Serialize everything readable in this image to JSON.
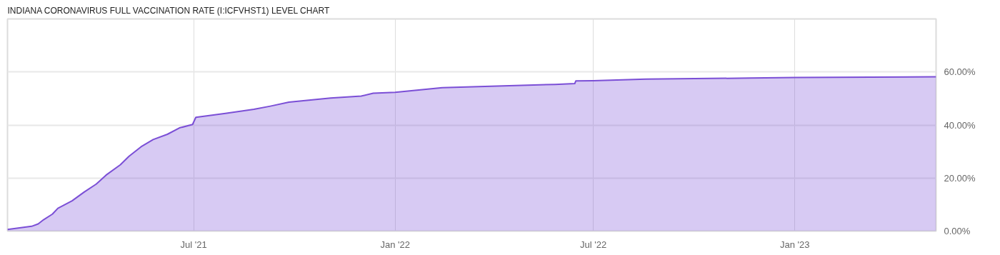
{
  "chart_data": {
    "type": "area",
    "title": "INDIANA CORONAVIRUS FULL VACCINATION RATE (I:ICFVHST1) LEVEL CHART",
    "x": [
      "2021-01-12",
      "2021-02-03",
      "2021-02-09",
      "2021-02-14",
      "2021-02-22",
      "2021-02-27",
      "2021-03-12",
      "2021-03-23",
      "2021-04-03",
      "2021-04-12",
      "2021-04-25",
      "2021-05-03",
      "2021-05-14",
      "2021-05-25",
      "2021-06-07",
      "2021-06-18",
      "2021-06-30",
      "2021-07-03",
      "2021-07-30",
      "2021-08-25",
      "2021-09-09",
      "2021-09-26",
      "2021-11-03",
      "2021-12-01",
      "2021-12-12",
      "2022-01-01",
      "2022-02-13",
      "2022-05-27",
      "2022-06-14",
      "2022-06-15",
      "2022-07-01",
      "2022-08-18",
      "2022-11-21",
      "2023-01-01",
      "2023-05-10"
    ],
    "series": [
      {
        "color": "#7b4fd6",
        "values": [
          0.6,
          1.8,
          2.7,
          4.3,
          6.4,
          8.6,
          11.4,
          14.7,
          17.7,
          21.1,
          25.0,
          28.2,
          31.8,
          34.5,
          36.5,
          38.9,
          40.2,
          42.9,
          44.4,
          45.9,
          47.1,
          48.6,
          50.2,
          50.9,
          52.0,
          52.3,
          54.1,
          55.3,
          55.6,
          56.6,
          56.7,
          57.3,
          57.7,
          57.9,
          58.2
        ]
      }
    ],
    "xlim": [
      "2021-01-12",
      "2023-05-10"
    ],
    "xticks": [
      {
        "value": "2021-07-01",
        "label": "Jul '21"
      },
      {
        "value": "2022-01-01",
        "label": "Jan '22"
      },
      {
        "value": "2022-07-01",
        "label": "Jul '22"
      },
      {
        "value": "2023-01-01",
        "label": "Jan '23"
      }
    ],
    "ylim": [
      0,
      80
    ],
    "yticks": [
      {
        "value": 0,
        "label": "0.00%"
      },
      {
        "value": 20,
        "label": "20.00%"
      },
      {
        "value": 40,
        "label": "40.00%"
      },
      {
        "value": 60,
        "label": "60.00%"
      }
    ],
    "grid": true
  }
}
